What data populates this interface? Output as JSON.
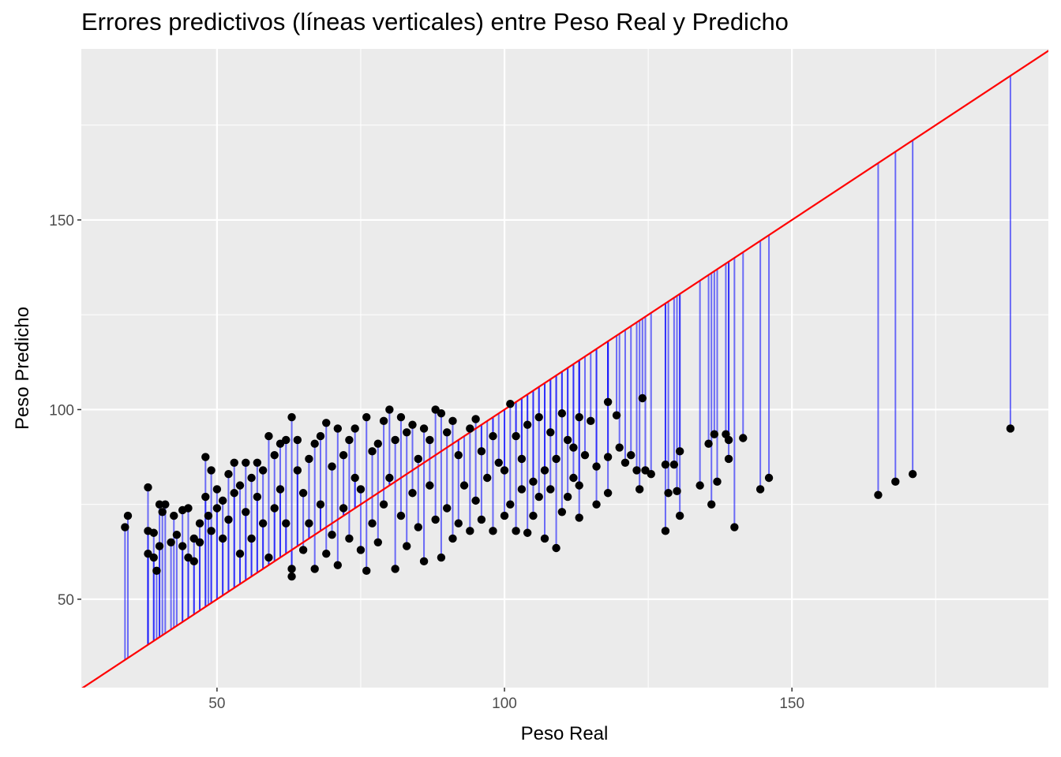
{
  "chart_data": {
    "type": "scatter",
    "title": "Errores predictivos (líneas verticales) entre Peso Real y Predicho",
    "xlabel": "Peso Real",
    "ylabel": "Peso Predicho",
    "xlim": [
      26.4,
      194.6
    ],
    "ylim": [
      26.7,
      195.1
    ],
    "xticks": [
      50,
      100,
      150
    ],
    "yticks": [
      50,
      100,
      150
    ],
    "xtick_labels": [
      "50",
      "100",
      "150"
    ],
    "ytick_labels": [
      "50",
      "100",
      "150"
    ],
    "grid": true,
    "reference_line": {
      "label": "y = x",
      "color": "#FF0000"
    },
    "segment_color": "#0000FF",
    "point_color": "#000000",
    "points": [
      [
        34,
        69
      ],
      [
        34.5,
        72
      ],
      [
        38,
        68
      ],
      [
        38,
        79.5
      ],
      [
        38,
        62
      ],
      [
        39,
        61
      ],
      [
        39,
        67.5
      ],
      [
        39.5,
        57.5
      ],
      [
        40,
        75
      ],
      [
        40,
        64
      ],
      [
        40.5,
        73
      ],
      [
        41,
        75
      ],
      [
        42,
        65
      ],
      [
        42.5,
        72
      ],
      [
        43,
        67
      ],
      [
        44,
        73.5
      ],
      [
        44,
        64
      ],
      [
        45,
        74
      ],
      [
        45,
        61
      ],
      [
        46,
        60
      ],
      [
        46,
        66
      ],
      [
        47,
        65
      ],
      [
        47,
        70
      ],
      [
        48,
        87.5
      ],
      [
        48,
        77
      ],
      [
        48.5,
        72
      ],
      [
        49,
        68
      ],
      [
        49,
        84
      ],
      [
        50,
        79
      ],
      [
        50,
        74
      ],
      [
        51,
        76
      ],
      [
        51,
        66
      ],
      [
        52,
        83
      ],
      [
        52,
        71
      ],
      [
        53,
        86
      ],
      [
        53,
        78
      ],
      [
        54,
        62
      ],
      [
        54,
        80
      ],
      [
        55,
        86
      ],
      [
        55,
        73
      ],
      [
        56,
        82
      ],
      [
        56,
        66
      ],
      [
        57,
        86
      ],
      [
        57,
        77
      ],
      [
        58,
        70
      ],
      [
        58,
        84
      ],
      [
        59,
        93
      ],
      [
        59,
        61
      ],
      [
        60,
        88
      ],
      [
        60,
        74
      ],
      [
        61,
        91
      ],
      [
        61,
        79
      ],
      [
        62,
        92
      ],
      [
        62,
        70
      ],
      [
        63,
        98
      ],
      [
        63,
        56
      ],
      [
        63,
        58
      ],
      [
        64,
        92
      ],
      [
        64,
        84
      ],
      [
        65,
        63
      ],
      [
        65,
        78
      ],
      [
        66,
        87
      ],
      [
        66,
        70
      ],
      [
        67,
        58
      ],
      [
        67,
        91
      ],
      [
        68,
        93
      ],
      [
        68,
        75
      ],
      [
        69,
        96.5
      ],
      [
        69,
        62
      ],
      [
        70,
        85
      ],
      [
        70,
        67
      ],
      [
        71,
        59
      ],
      [
        71,
        95
      ],
      [
        72,
        88
      ],
      [
        72,
        74
      ],
      [
        73,
        92
      ],
      [
        73,
        66
      ],
      [
        74,
        82
      ],
      [
        74,
        95
      ],
      [
        75,
        63
      ],
      [
        75,
        79
      ],
      [
        76,
        98
      ],
      [
        76,
        57.5
      ],
      [
        77,
        89
      ],
      [
        77,
        70
      ],
      [
        78,
        91
      ],
      [
        78,
        65
      ],
      [
        79,
        97
      ],
      [
        79,
        75
      ],
      [
        80,
        100
      ],
      [
        80,
        82
      ],
      [
        81,
        58
      ],
      [
        81,
        92
      ],
      [
        82,
        98
      ],
      [
        82,
        72
      ],
      [
        83,
        94
      ],
      [
        83,
        64
      ],
      [
        84,
        96
      ],
      [
        84,
        78
      ],
      [
        85,
        87
      ],
      [
        85,
        69
      ],
      [
        86,
        95
      ],
      [
        86,
        60
      ],
      [
        87,
        80
      ],
      [
        87,
        92
      ],
      [
        88,
        100
      ],
      [
        88,
        71
      ],
      [
        89,
        61
      ],
      [
        89,
        99
      ],
      [
        90,
        94
      ],
      [
        90,
        74
      ],
      [
        91,
        66
      ],
      [
        91,
        97
      ],
      [
        92,
        88
      ],
      [
        92,
        70
      ],
      [
        93,
        80
      ],
      [
        94,
        95
      ],
      [
        94,
        68
      ],
      [
        95,
        97.5
      ],
      [
        95,
        76
      ],
      [
        96,
        89
      ],
      [
        96,
        71
      ],
      [
        97,
        82
      ],
      [
        98,
        68
      ],
      [
        98,
        93
      ],
      [
        99,
        86
      ],
      [
        100,
        72
      ],
      [
        100,
        84
      ],
      [
        101,
        101.5
      ],
      [
        101,
        75
      ],
      [
        102,
        68
      ],
      [
        102,
        93
      ],
      [
        103,
        87
      ],
      [
        103,
        79
      ],
      [
        104,
        67.5
      ],
      [
        104,
        96
      ],
      [
        105,
        81
      ],
      [
        105,
        72
      ],
      [
        106,
        98
      ],
      [
        106,
        77
      ],
      [
        107,
        84
      ],
      [
        107,
        66
      ],
      [
        108,
        94
      ],
      [
        108,
        79
      ],
      [
        109,
        63.5
      ],
      [
        109,
        87
      ],
      [
        110,
        99
      ],
      [
        110,
        73
      ],
      [
        111,
        77
      ],
      [
        111,
        92
      ],
      [
        112,
        90
      ],
      [
        112,
        82
      ],
      [
        113,
        98
      ],
      [
        113,
        71.5
      ],
      [
        113,
        80
      ],
      [
        114,
        88
      ],
      [
        115,
        97
      ],
      [
        116,
        75
      ],
      [
        116,
        85
      ],
      [
        118,
        102
      ],
      [
        118,
        87.5
      ],
      [
        118,
        78
      ],
      [
        119.5,
        98.5
      ],
      [
        120,
        90
      ],
      [
        121,
        86
      ],
      [
        122,
        88
      ],
      [
        123,
        84
      ],
      [
        123.5,
        79
      ],
      [
        124,
        103
      ],
      [
        124.5,
        84
      ],
      [
        125.5,
        83
      ],
      [
        128,
        68
      ],
      [
        128,
        85.5
      ],
      [
        128.5,
        78
      ],
      [
        129.5,
        85.5
      ],
      [
        130,
        78.5
      ],
      [
        130.5,
        72
      ],
      [
        130.5,
        89
      ],
      [
        134,
        80
      ],
      [
        135.5,
        91
      ],
      [
        136,
        75
      ],
      [
        136.5,
        93.5
      ],
      [
        137,
        81
      ],
      [
        138.5,
        93.5
      ],
      [
        139,
        87
      ],
      [
        139,
        92
      ],
      [
        140,
        69
      ],
      [
        141.5,
        92.5
      ],
      [
        144.5,
        79
      ],
      [
        146,
        82
      ],
      [
        165,
        77.5
      ],
      [
        168,
        81
      ],
      [
        171,
        83
      ],
      [
        188,
        95
      ]
    ]
  }
}
